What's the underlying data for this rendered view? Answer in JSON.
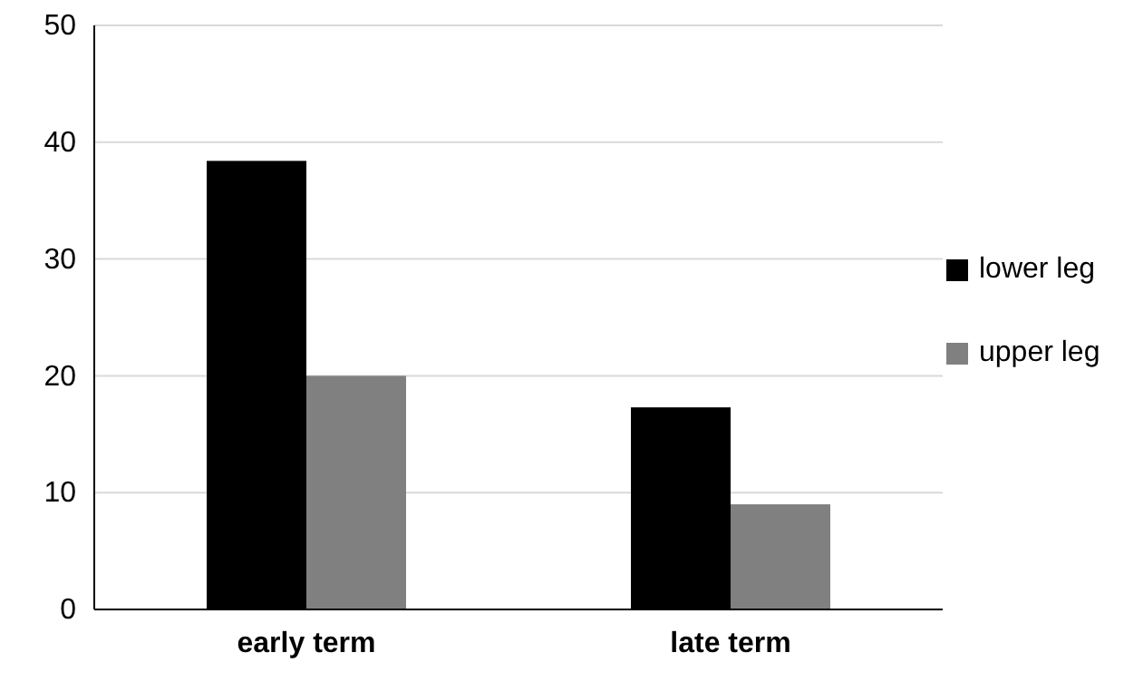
{
  "chart_data": {
    "type": "bar",
    "categories": [
      "early term",
      "late term"
    ],
    "series": [
      {
        "name": "lower leg",
        "color": "#000000",
        "values": [
          38.4,
          17.3
        ]
      },
      {
        "name": "upper leg",
        "color": "#808080",
        "values": [
          20,
          9
        ]
      }
    ],
    "ylim": [
      0,
      50
    ],
    "yticks": [
      0,
      10,
      20,
      30,
      40,
      50
    ],
    "grid": "y",
    "legend": "right"
  }
}
